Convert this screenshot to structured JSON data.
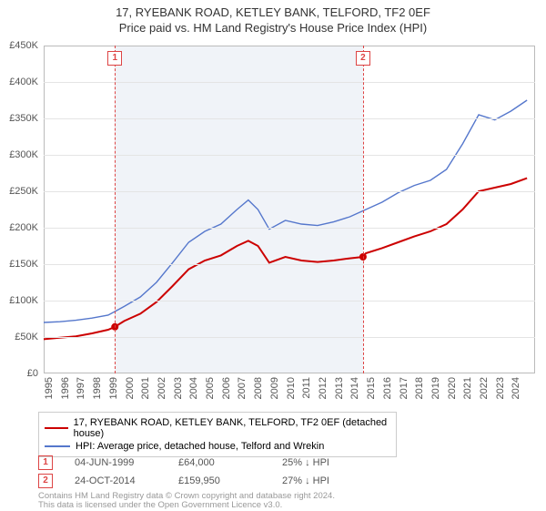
{
  "title": {
    "line1": "17, RYEBANK ROAD, KETLEY BANK, TELFORD, TF2 0EF",
    "line2": "Price paid vs. HM Land Registry's House Price Index (HPI)"
  },
  "chart": {
    "type": "line",
    "background_color": "#ffffff",
    "shaded_band_color": "#f0f3f8",
    "grid_color": "#e4e4e4",
    "border_color": "#bbbbbb",
    "x_range": [
      1995,
      2025.5
    ],
    "x_ticks": [
      1995,
      1996,
      1997,
      1998,
      1999,
      2000,
      2001,
      2002,
      2003,
      2004,
      2005,
      2006,
      2007,
      2008,
      2009,
      2010,
      2011,
      2012,
      2013,
      2014,
      2015,
      2016,
      2017,
      2018,
      2019,
      2020,
      2021,
      2022,
      2023,
      2024
    ],
    "shaded_band": [
      1999.42,
      2014.82
    ],
    "y_label_prefix": "£",
    "y_label_suffix": "K",
    "ylim": [
      0,
      450
    ],
    "ytick_step": 50,
    "label_fontsize": 11,
    "series": [
      {
        "id": "price_paid",
        "label": "17, RYEBANK ROAD, KETLEY BANK, TELFORD, TF2 0EF (detached house)",
        "color": "#cc0000",
        "width": 2,
        "points": [
          [
            1995,
            47
          ],
          [
            1996,
            49
          ],
          [
            1997,
            51
          ],
          [
            1998,
            55
          ],
          [
            1999,
            60
          ],
          [
            1999.42,
            64
          ],
          [
            2000,
            72
          ],
          [
            2001,
            82
          ],
          [
            2002,
            98
          ],
          [
            2003,
            120
          ],
          [
            2004,
            143
          ],
          [
            2005,
            155
          ],
          [
            2006,
            162
          ],
          [
            2007,
            175
          ],
          [
            2007.7,
            182
          ],
          [
            2008.3,
            175
          ],
          [
            2009,
            152
          ],
          [
            2010,
            160
          ],
          [
            2011,
            155
          ],
          [
            2012,
            153
          ],
          [
            2013,
            155
          ],
          [
            2014,
            158
          ],
          [
            2014.82,
            160
          ],
          [
            2015,
            165
          ],
          [
            2016,
            172
          ],
          [
            2017,
            180
          ],
          [
            2018,
            188
          ],
          [
            2019,
            195
          ],
          [
            2020,
            205
          ],
          [
            2021,
            225
          ],
          [
            2022,
            250
          ],
          [
            2023,
            255
          ],
          [
            2024,
            260
          ],
          [
            2025,
            268
          ]
        ],
        "markers": [
          {
            "id": "1",
            "x": 1999.42,
            "y": 64
          },
          {
            "id": "2",
            "x": 2014.82,
            "y": 160
          }
        ]
      },
      {
        "id": "hpi",
        "label": "HPI: Average price, detached house, Telford and Wrekin",
        "color": "#5577cc",
        "width": 1.4,
        "points": [
          [
            1995,
            70
          ],
          [
            1996,
            71
          ],
          [
            1997,
            73
          ],
          [
            1998,
            76
          ],
          [
            1999,
            80
          ],
          [
            2000,
            92
          ],
          [
            2001,
            105
          ],
          [
            2002,
            125
          ],
          [
            2003,
            152
          ],
          [
            2004,
            180
          ],
          [
            2005,
            195
          ],
          [
            2006,
            205
          ],
          [
            2007,
            225
          ],
          [
            2007.7,
            238
          ],
          [
            2008.3,
            225
          ],
          [
            2009,
            198
          ],
          [
            2010,
            210
          ],
          [
            2011,
            205
          ],
          [
            2012,
            203
          ],
          [
            2013,
            208
          ],
          [
            2014,
            215
          ],
          [
            2015,
            225
          ],
          [
            2016,
            235
          ],
          [
            2017,
            248
          ],
          [
            2018,
            258
          ],
          [
            2019,
            265
          ],
          [
            2020,
            280
          ],
          [
            2021,
            315
          ],
          [
            2022,
            355
          ],
          [
            2023,
            348
          ],
          [
            2024,
            360
          ],
          [
            2025,
            375
          ]
        ]
      }
    ],
    "marker_line_color": "#d44",
    "markers_top": [
      {
        "id": "1",
        "x": 1999.42
      },
      {
        "id": "2",
        "x": 2014.82
      }
    ]
  },
  "legend": {
    "items": [
      {
        "color": "#cc0000",
        "label": "17, RYEBANK ROAD, KETLEY BANK, TELFORD, TF2 0EF (detached house)"
      },
      {
        "color": "#5577cc",
        "label": "HPI: Average price, detached house, Telford and Wrekin"
      }
    ]
  },
  "sales": [
    {
      "id": "1",
      "date": "04-JUN-1999",
      "price": "£64,000",
      "delta": "25% ↓ HPI"
    },
    {
      "id": "2",
      "date": "24-OCT-2014",
      "price": "£159,950",
      "delta": "27% ↓ HPI"
    }
  ],
  "footer": {
    "line1": "Contains HM Land Registry data © Crown copyright and database right 2024.",
    "line2": "This data is licensed under the Open Government Licence v3.0."
  }
}
